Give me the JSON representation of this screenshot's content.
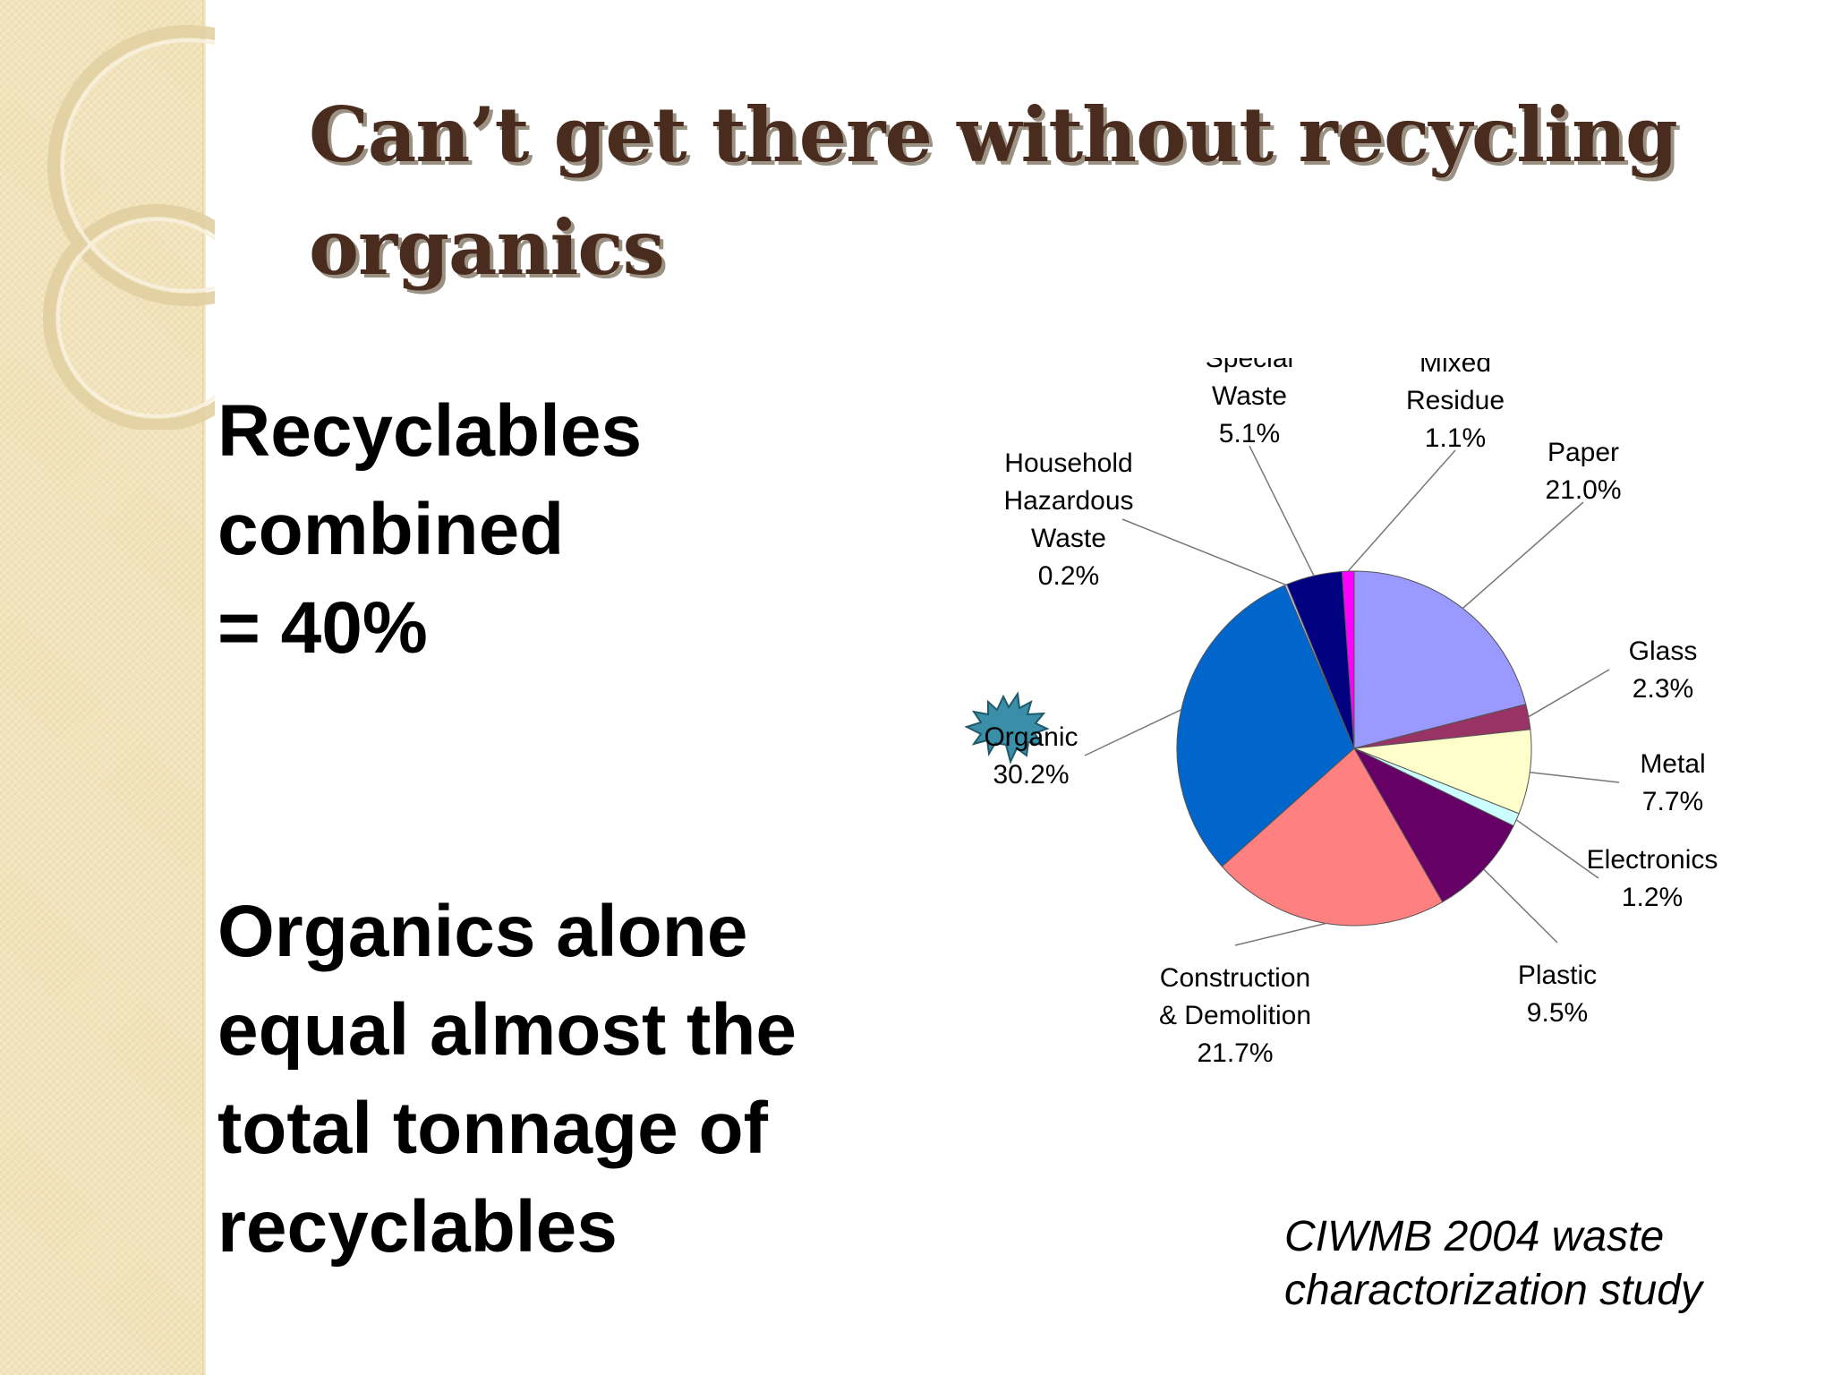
{
  "slide": {
    "title_lines": [
      "Can’t get there without recycling",
      "organics"
    ],
    "recyclables_lines": [
      "Recyclables",
      "combined",
      "= 40%"
    ],
    "organics_lines": [
      "Organics alone",
      "equal almost the",
      "total tonnage of",
      "recyclables"
    ],
    "source_lines": [
      "CIWMB 2004 waste",
      "charactorization study"
    ],
    "colors": {
      "title": "#4a2c1f",
      "side_strip": "#f2e3bb",
      "starburst": "#3a8ea8"
    }
  },
  "chart_data": {
    "type": "pie",
    "start_angle_deg": 0,
    "direction": "clockwise",
    "slices": [
      {
        "label_lines": [
          "Paper",
          "21.0%"
        ],
        "value": 21.0,
        "color": "#9999ff"
      },
      {
        "label_lines": [
          "Glass",
          "2.3%"
        ],
        "value": 2.3,
        "color": "#993366"
      },
      {
        "label_lines": [
          "Metal",
          "7.7%"
        ],
        "value": 7.7,
        "color": "#ffffcc"
      },
      {
        "label_lines": [
          "Electronics",
          "1.2%"
        ],
        "value": 1.2,
        "color": "#ccffff"
      },
      {
        "label_lines": [
          "Plastic",
          "9.5%"
        ],
        "value": 9.5,
        "color": "#660066"
      },
      {
        "label_lines": [
          "Construction",
          "& Demolition",
          "21.7%"
        ],
        "value": 21.7,
        "color": "#ff8080"
      },
      {
        "label_lines": [
          "Organic",
          "30.2%"
        ],
        "value": 30.2,
        "color": "#0066cc"
      },
      {
        "label_lines": [
          "Household",
          "Hazardous",
          "Waste",
          "0.2%"
        ],
        "value": 0.2,
        "color": "#ccccff"
      },
      {
        "label_lines": [
          "Special",
          "Waste",
          "5.1%"
        ],
        "value": 5.1,
        "color": "#000080"
      },
      {
        "label_lines": [
          "Mixed",
          "Residue",
          "1.1%"
        ],
        "value": 1.1,
        "color": "#ff00ff"
      }
    ]
  }
}
